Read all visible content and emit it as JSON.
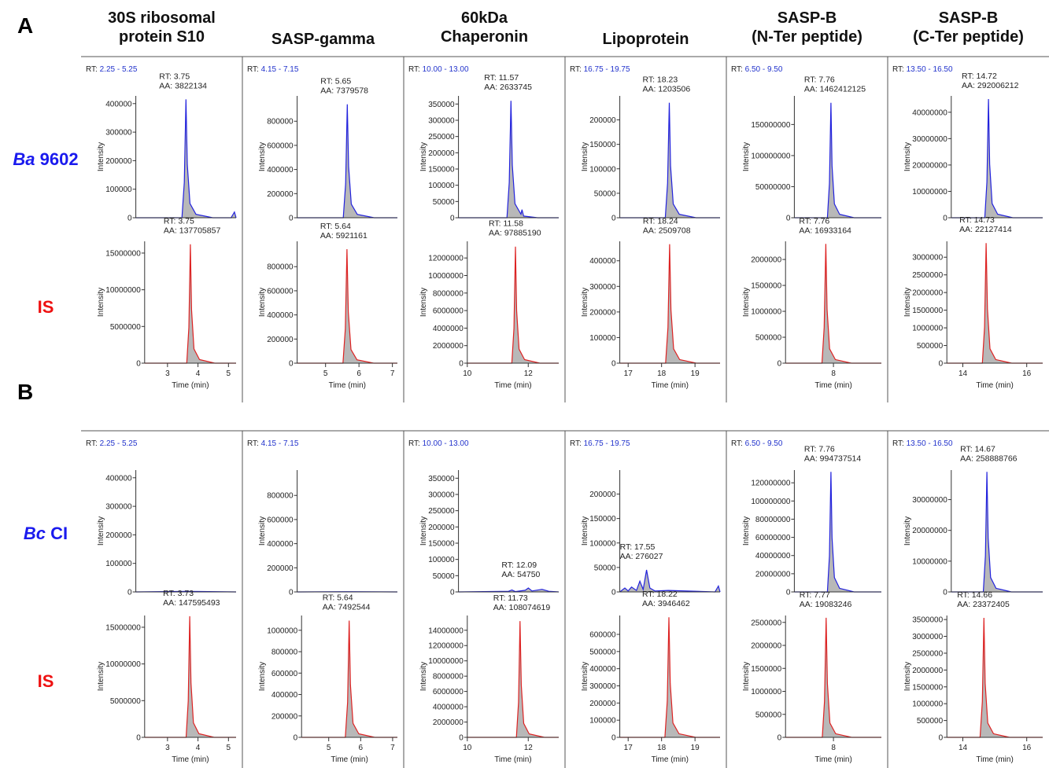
{
  "panels": [
    {
      "label": "A",
      "rows": [
        {
          "species": "Ba",
          "strain": "9602",
          "color": "#1a1aee"
        },
        {
          "label": "IS",
          "color": "#ee1111"
        }
      ]
    },
    {
      "label": "B",
      "rows": [
        {
          "species": "Bc",
          "strain": "CI",
          "color": "#1a1aee"
        },
        {
          "label": "IS",
          "color": "#ee1111"
        }
      ]
    }
  ],
  "columns": [
    [
      "30S ribosomal",
      "protein S10"
    ],
    [
      "SASP-gamma"
    ],
    [
      "60kDa",
      "Chaperonin"
    ],
    [
      "Lipoprotein"
    ],
    [
      "SASP-B",
      "(N-Ter peptide)"
    ],
    [
      "SASP-B",
      "(C-Ter peptide)"
    ]
  ],
  "chart_data": [
    {
      "type": "line",
      "rt_window": [
        "RT:",
        "2.25 - 5.25"
      ],
      "annotation": [
        "RT: 3.75",
        "AA: 3822134"
      ],
      "ylabel": "Intensity",
      "color": "#2222dd",
      "fill": "#b8b8b8",
      "xlim": [
        2.25,
        5.25
      ],
      "ylim": [
        0,
        427000
      ],
      "yticks": [
        0,
        100000,
        200000,
        300000,
        400000
      ],
      "x": [
        2.25,
        3.63,
        3.7,
        3.75,
        3.79,
        3.87,
        4.05,
        4.55,
        5.1,
        5.2,
        5.25
      ],
      "values": [
        0,
        0,
        124000,
        415000,
        187000,
        50000,
        12000,
        0,
        0,
        20000,
        0
      ]
    },
    {
      "type": "line",
      "annotation": [
        "RT: 3.75",
        "AA: 137705857"
      ],
      "ylabel": "Intensity",
      "xlabel": "Time (min)",
      "color": "#dd2222",
      "fill": "#b8b8b8",
      "xlim": [
        2.25,
        5.25
      ],
      "ylim": [
        0,
        16600000
      ],
      "yticks": [
        0,
        5000000,
        10000000,
        15000000
      ],
      "xticks": [
        3,
        4,
        5
      ],
      "x": [
        2.25,
        3.63,
        3.7,
        3.75,
        3.79,
        3.87,
        4.05,
        4.55,
        5.25
      ],
      "values": [
        0,
        0,
        4860000,
        16200000,
        7290000,
        1940000,
        490000,
        0,
        0
      ]
    },
    {
      "type": "line",
      "rt_window": [
        "RT:",
        "4.15 - 7.15"
      ],
      "annotation": [
        "RT: 5.65",
        "AA: 7379578"
      ],
      "ylabel": "Intensity",
      "color": "#2222dd",
      "fill": "#b8b8b8",
      "xlim": [
        4.15,
        7.15
      ],
      "ylim": [
        0,
        1010000
      ],
      "yticks": [
        0,
        200000,
        400000,
        600000,
        800000
      ],
      "x": [
        4.15,
        5.53,
        5.6,
        5.65,
        5.69,
        5.77,
        5.95,
        6.45,
        7.15
      ],
      "values": [
        0,
        0,
        282000,
        940000,
        423000,
        113000,
        28000,
        0,
        0
      ]
    },
    {
      "type": "line",
      "annotation": [
        "RT: 5.64",
        "AA: 5921161"
      ],
      "ylabel": "Intensity",
      "xlabel": "Time (min)",
      "color": "#dd2222",
      "fill": "#b8b8b8",
      "xlim": [
        4.15,
        7.15
      ],
      "ylim": [
        0,
        1010000
      ],
      "yticks": [
        0,
        200000,
        400000,
        600000,
        800000
      ],
      "xticks": [
        5,
        6,
        7
      ],
      "x": [
        4.15,
        5.52,
        5.59,
        5.64,
        5.68,
        5.76,
        5.94,
        6.44,
        7.15
      ],
      "values": [
        0,
        0,
        284000,
        945000,
        425000,
        113000,
        28000,
        0,
        0
      ]
    },
    {
      "type": "line",
      "rt_window": [
        "RT:",
        "10.00 - 13.00"
      ],
      "annotation": [
        "RT: 11.57",
        "AA: 2633745"
      ],
      "ylabel": "Intensity",
      "color": "#2222dd",
      "fill": "#b8b8b8",
      "xlim": [
        10,
        13
      ],
      "ylim": [
        0,
        375000
      ],
      "yticks": [
        0,
        50000,
        100000,
        150000,
        200000,
        250000,
        300000,
        350000
      ],
      "x": [
        10,
        11.45,
        11.52,
        11.57,
        11.61,
        11.69,
        11.87,
        11.9,
        11.95,
        12.37,
        13
      ],
      "values": [
        0,
        0,
        108000,
        360000,
        162000,
        43000,
        11000,
        25000,
        5000,
        0,
        0
      ]
    },
    {
      "type": "line",
      "annotation": [
        "RT: 11.58",
        "AA: 97885190"
      ],
      "ylabel": "Intensity",
      "xlabel": "Time (min)",
      "color": "#dd2222",
      "fill": "#b8b8b8",
      "xlim": [
        10,
        13
      ],
      "ylim": [
        0,
        13900000
      ],
      "yticks": [
        0,
        2000000,
        4000000,
        6000000,
        8000000,
        10000000,
        12000000
      ],
      "xticks": [
        10,
        12
      ],
      "x": [
        10,
        11.46,
        11.53,
        11.58,
        11.62,
        11.7,
        11.88,
        12.38,
        13
      ],
      "values": [
        0,
        0,
        3990000,
        13300000,
        5990000,
        1600000,
        400000,
        0,
        0
      ]
    },
    {
      "type": "line",
      "rt_window": [
        "RT:",
        "16.75 - 19.75"
      ],
      "annotation": [
        "RT: 18.23",
        "AA: 1203506"
      ],
      "ylabel": "Intensity",
      "color": "#2222dd",
      "fill": "#b8b8b8",
      "xlim": [
        16.75,
        19.75
      ],
      "ylim": [
        0,
        249000
      ],
      "yticks": [
        0,
        50000,
        100000,
        150000,
        200000
      ],
      "x": [
        16.75,
        18.11,
        18.18,
        18.23,
        18.27,
        18.35,
        18.53,
        19.03,
        19.75
      ],
      "values": [
        0,
        0,
        70500,
        235000,
        106000,
        28200,
        7000,
        0,
        0
      ]
    },
    {
      "type": "line",
      "annotation": [
        "RT: 18.24",
        "AA: 2509708"
      ],
      "ylabel": "Intensity",
      "xlabel": "Time (min)",
      "color": "#dd2222",
      "fill": "#b8b8b8",
      "xlim": [
        16.75,
        19.75
      ],
      "ylim": [
        0,
        476000
      ],
      "yticks": [
        0,
        100000,
        200000,
        300000,
        400000
      ],
      "xticks": [
        17,
        18,
        19
      ],
      "x": [
        16.75,
        18.12,
        18.19,
        18.24,
        18.28,
        18.36,
        18.54,
        19.04,
        19.75
      ],
      "values": [
        0,
        0,
        139500,
        465000,
        209000,
        55800,
        14000,
        0,
        0
      ]
    },
    {
      "type": "line",
      "rt_window": [
        "RT:",
        "6.50 - 9.50"
      ],
      "annotation": [
        "RT: 7.76",
        "AA: 1462412125"
      ],
      "ylabel": "Intensity",
      "color": "#2222dd",
      "fill": "#b8b8b8",
      "xlim": [
        6.5,
        9.5
      ],
      "ylim": [
        0,
        196000000
      ],
      "yticks": [
        0,
        50000000,
        100000000,
        150000000
      ],
      "x": [
        6.5,
        7.64,
        7.71,
        7.76,
        7.8,
        7.88,
        8.06,
        8.56,
        9.5
      ],
      "values": [
        0,
        0,
        55500000,
        185000000,
        83300000,
        22200000,
        5550000,
        0,
        0
      ]
    },
    {
      "type": "line",
      "annotation": [
        "RT: 7.76",
        "AA: 16933164"
      ],
      "ylabel": "Intensity",
      "xlabel": "Time (min)",
      "color": "#dd2222",
      "fill": "#b8b8b8",
      "xlim": [
        6.5,
        9.5
      ],
      "ylim": [
        0,
        2350000
      ],
      "yticks": [
        0,
        500000,
        1000000,
        1500000,
        2000000
      ],
      "xticks": [
        8
      ],
      "x": [
        6.5,
        7.64,
        7.71,
        7.76,
        7.8,
        7.88,
        8.06,
        8.56,
        9.5
      ],
      "values": [
        0,
        0,
        690000,
        2300000,
        1035000,
        276000,
        69000,
        0,
        0
      ]
    },
    {
      "type": "line",
      "rt_window": [
        "RT:",
        "13.50 - 16.50"
      ],
      "annotation": [
        "RT: 14.72",
        "AA: 292006212"
      ],
      "ylabel": "Intensity",
      "color": "#2222dd",
      "fill": "#b8b8b8",
      "xlim": [
        13.5,
        16.5
      ],
      "ylim": [
        0,
        46200000
      ],
      "yticks": [
        0,
        10000000,
        20000000,
        30000000,
        40000000
      ],
      "x": [
        13.5,
        14.6,
        14.67,
        14.72,
        14.76,
        14.84,
        15.02,
        15.52,
        16.5
      ],
      "values": [
        0,
        0,
        13500000,
        45000000,
        20300000,
        5400000,
        1350000,
        0,
        0
      ]
    },
    {
      "type": "line",
      "annotation": [
        "RT: 14.73",
        "AA: 22127414"
      ],
      "ylabel": "Intensity",
      "xlabel": "Time (min)",
      "color": "#dd2222",
      "fill": "#b8b8b8",
      "xlim": [
        13.5,
        16.5
      ],
      "ylim": [
        0,
        3450000
      ],
      "yticks": [
        0,
        500000,
        1000000,
        1500000,
        2000000,
        2500000,
        3000000
      ],
      "xticks": [
        14,
        16
      ],
      "x": [
        13.5,
        14.61,
        14.68,
        14.73,
        14.77,
        14.85,
        15.03,
        15.53,
        16.5
      ],
      "values": [
        0,
        0,
        1020000,
        3400000,
        1530000,
        408000,
        102000,
        0,
        0
      ]
    },
    {
      "type": "line",
      "rt_window": [
        "RT:",
        "2.25 - 5.25"
      ],
      "ylabel": "Intensity",
      "color": "#2222dd",
      "fill": "#b8b8b8",
      "xlim": [
        2.25,
        5.25
      ],
      "ylim": [
        0,
        427000
      ],
      "yticks": [
        0,
        100000,
        200000,
        300000,
        400000
      ],
      "x": [
        2.25,
        3.73,
        5.25
      ],
      "values": [
        0,
        2000,
        0
      ]
    },
    {
      "type": "line",
      "annotation": [
        "RT: 3.73",
        "AA: 147595493"
      ],
      "ylabel": "Intensity",
      "xlabel": "Time (min)",
      "color": "#dd2222",
      "fill": "#b8b8b8",
      "xlim": [
        2.25,
        5.25
      ],
      "ylim": [
        0,
        16600000
      ],
      "yticks": [
        0,
        5000000,
        10000000,
        15000000
      ],
      "xticks": [
        3,
        4,
        5
      ],
      "x": [
        2.25,
        3.61,
        3.68,
        3.73,
        3.77,
        3.85,
        4.03,
        4.53,
        5.25
      ],
      "values": [
        0,
        0,
        4950000,
        16500000,
        7430000,
        1980000,
        500000,
        0,
        0
      ]
    },
    {
      "type": "line",
      "rt_window": [
        "RT:",
        "4.15 - 7.15"
      ],
      "ylabel": "Intensity",
      "color": "#2222dd",
      "fill": "#b8b8b8",
      "xlim": [
        4.15,
        7.15
      ],
      "ylim": [
        0,
        1010000
      ],
      "yticks": [
        0,
        200000,
        400000,
        600000,
        800000
      ],
      "x": [
        4.15,
        5.64,
        7.15
      ],
      "values": [
        0,
        2000,
        0
      ]
    },
    {
      "type": "line",
      "annotation": [
        "RT: 5.64",
        "AA: 7492544"
      ],
      "ylabel": "Intensity",
      "xlabel": "Time (min)",
      "color": "#dd2222",
      "fill": "#b8b8b8",
      "xlim": [
        4.15,
        7.15
      ],
      "ylim": [
        0,
        1138000
      ],
      "yticks": [
        0,
        200000,
        400000,
        600000,
        800000,
        1000000
      ],
      "xticks": [
        5,
        6,
        7
      ],
      "x": [
        4.15,
        5.52,
        5.59,
        5.64,
        5.68,
        5.76,
        5.94,
        6.44,
        7.15
      ],
      "values": [
        0,
        0,
        327000,
        1090000,
        491000,
        131000,
        33000,
        0,
        0
      ]
    },
    {
      "type": "line",
      "rt_window": [
        "RT:",
        "10.00 - 13.00"
      ],
      "annotation": [
        "RT: 12.09",
        "AA: 54750"
      ],
      "ylabel": "Intensity",
      "color": "#2222dd",
      "fill": "#b8b8b8",
      "xlim": [
        10,
        13
      ],
      "ylim": [
        0,
        375000
      ],
      "yticks": [
        0,
        50000,
        100000,
        150000,
        200000,
        250000,
        300000,
        350000
      ],
      "x": [
        10,
        11.5,
        11.6,
        11.7,
        12.0,
        12.09,
        12.2,
        12.5,
        12.7,
        13
      ],
      "values": [
        0,
        2000,
        6000,
        1000,
        5000,
        12000,
        3000,
        8000,
        2000,
        0
      ]
    },
    {
      "type": "line",
      "annotation": [
        "RT: 11.73",
        "AA: 108074619"
      ],
      "ylabel": "Intensity",
      "xlabel": "Time (min)",
      "color": "#dd2222",
      "fill": "#b8b8b8",
      "xlim": [
        10,
        13
      ],
      "ylim": [
        0,
        15930000
      ],
      "yticks": [
        0,
        2000000,
        4000000,
        6000000,
        8000000,
        10000000,
        12000000,
        14000000
      ],
      "xticks": [
        10,
        12
      ],
      "x": [
        10,
        11.61,
        11.68,
        11.73,
        11.77,
        11.85,
        12.03,
        12.53,
        13
      ],
      "values": [
        0,
        0,
        4560000,
        15200000,
        6840000,
        1820000,
        456000,
        0,
        0
      ]
    },
    {
      "type": "line",
      "rt_window": [
        "RT:",
        "16.75 - 19.75"
      ],
      "annotation": [
        "RT: 17.55",
        "AA: 276027"
      ],
      "ylabel": "Intensity",
      "color": "#2222dd",
      "fill": "#b8b8b8",
      "xlim": [
        16.75,
        19.75
      ],
      "ylim": [
        0,
        249000
      ],
      "yticks": [
        0,
        50000,
        100000,
        150000,
        200000
      ],
      "x": [
        16.75,
        16.9,
        17.0,
        17.1,
        17.25,
        17.35,
        17.45,
        17.55,
        17.65,
        17.8,
        18.2,
        19.6,
        19.7,
        19.75
      ],
      "values": [
        0,
        8000,
        2000,
        10000,
        3000,
        22000,
        5000,
        45000,
        8000,
        2000,
        3000,
        0,
        12000,
        0
      ]
    },
    {
      "type": "line",
      "annotation": [
        "RT: 18.22",
        "AA: 3946462"
      ],
      "ylabel": "Intensity",
      "xlabel": "Time (min)",
      "color": "#dd2222",
      "fill": "#b8b8b8",
      "xlim": [
        16.75,
        19.75
      ],
      "ylim": [
        0,
        710000
      ],
      "yticks": [
        0,
        100000,
        200000,
        300000,
        400000,
        500000,
        600000
      ],
      "xticks": [
        17,
        18,
        19
      ],
      "x": [
        16.75,
        18.1,
        18.17,
        18.22,
        18.26,
        18.34,
        18.52,
        19.02,
        19.75
      ],
      "values": [
        0,
        0,
        210000,
        700000,
        315000,
        84000,
        21000,
        0,
        0
      ]
    },
    {
      "type": "line",
      "rt_window": [
        "RT:",
        "6.50 - 9.50"
      ],
      "annotation": [
        "RT: 7.76",
        "AA: 994737514"
      ],
      "ylabel": "Intensity",
      "color": "#2222dd",
      "fill": "#b8b8b8",
      "xlim": [
        6.5,
        9.5
      ],
      "ylim": [
        0,
        134000000
      ],
      "yticks": [
        0,
        20000000,
        40000000,
        60000000,
        80000000,
        100000000,
        120000000
      ],
      "x": [
        6.5,
        7.64,
        7.71,
        7.76,
        7.8,
        7.88,
        8.06,
        8.56,
        9.5
      ],
      "values": [
        0,
        0,
        39600000,
        132000000,
        59400000,
        15800000,
        3960000,
        0,
        0
      ]
    },
    {
      "type": "line",
      "annotation": [
        "RT: 7.77",
        "AA: 19083246"
      ],
      "ylabel": "Intensity",
      "xlabel": "Time (min)",
      "color": "#dd2222",
      "fill": "#b8b8b8",
      "xlim": [
        6.5,
        9.5
      ],
      "ylim": [
        0,
        2650000
      ],
      "yticks": [
        0,
        500000,
        1000000,
        1500000,
        2000000,
        2500000
      ],
      "xticks": [
        8
      ],
      "x": [
        6.5,
        7.65,
        7.72,
        7.77,
        7.81,
        7.89,
        8.07,
        8.57,
        9.5
      ],
      "values": [
        0,
        0,
        780000,
        2600000,
        1170000,
        312000,
        78000,
        0,
        0
      ]
    },
    {
      "type": "line",
      "rt_window": [
        "RT:",
        "13.50 - 16.50"
      ],
      "annotation": [
        "RT: 14.67",
        "AA: 258888766"
      ],
      "ylabel": "Intensity",
      "color": "#2222dd",
      "fill": "#b8b8b8",
      "xlim": [
        13.5,
        16.5
      ],
      "ylim": [
        0,
        39600000
      ],
      "yticks": [
        0,
        10000000,
        20000000,
        30000000
      ],
      "x": [
        13.5,
        14.55,
        14.62,
        14.67,
        14.71,
        14.79,
        14.97,
        15.47,
        16.5
      ],
      "values": [
        0,
        0,
        11700000,
        39000000,
        17550000,
        4680000,
        1170000,
        0,
        0
      ]
    },
    {
      "type": "line",
      "annotation": [
        "RT: 14.66",
        "AA: 23372405"
      ],
      "ylabel": "Intensity",
      "xlabel": "Time (min)",
      "color": "#dd2222",
      "fill": "#b8b8b8",
      "xlim": [
        13.5,
        16.5
      ],
      "ylim": [
        0,
        3620000
      ],
      "yticks": [
        0,
        500000,
        1000000,
        1500000,
        2000000,
        2500000,
        3000000,
        3500000
      ],
      "xticks": [
        14,
        16
      ],
      "x": [
        13.5,
        14.54,
        14.61,
        14.66,
        14.7,
        14.78,
        14.96,
        15.46,
        16.5
      ],
      "values": [
        0,
        0,
        1065000,
        3550000,
        1598000,
        426000,
        106500,
        0,
        0
      ]
    }
  ]
}
